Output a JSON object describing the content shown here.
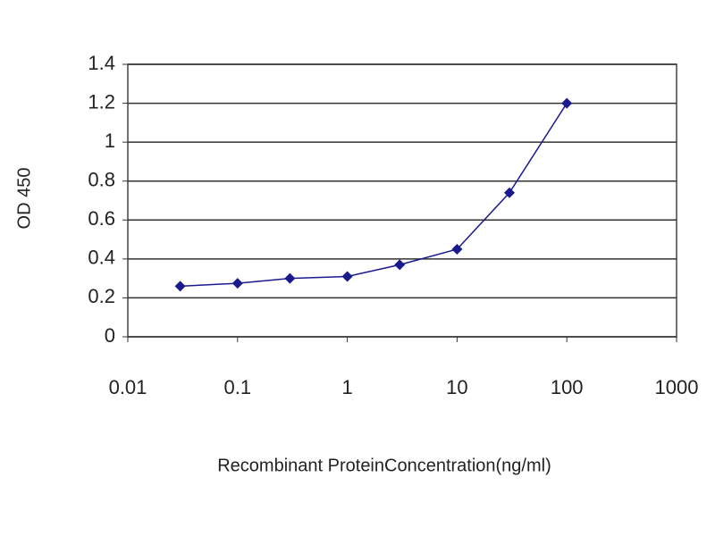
{
  "chart_data": {
    "type": "line",
    "x_label": "Recombinant ProteinConcentration(ng/ml)",
    "y_label": "OD 450",
    "x": [
      0.03,
      0.1,
      0.3,
      1,
      3,
      10,
      30,
      100
    ],
    "values": [
      0.26,
      0.275,
      0.3,
      0.31,
      0.37,
      0.45,
      0.74,
      1.2
    ],
    "color": "#1a1a8c",
    "x_log": true,
    "xlim": [
      0.01,
      1000
    ],
    "xticks": [
      0.01,
      0.1,
      1,
      10,
      100,
      1000
    ],
    "ylim": [
      0,
      1.4
    ],
    "yticks": [
      0,
      0.2,
      0.4,
      0.6,
      0.8,
      1,
      1.2,
      1.4
    ],
    "grid": true
  }
}
